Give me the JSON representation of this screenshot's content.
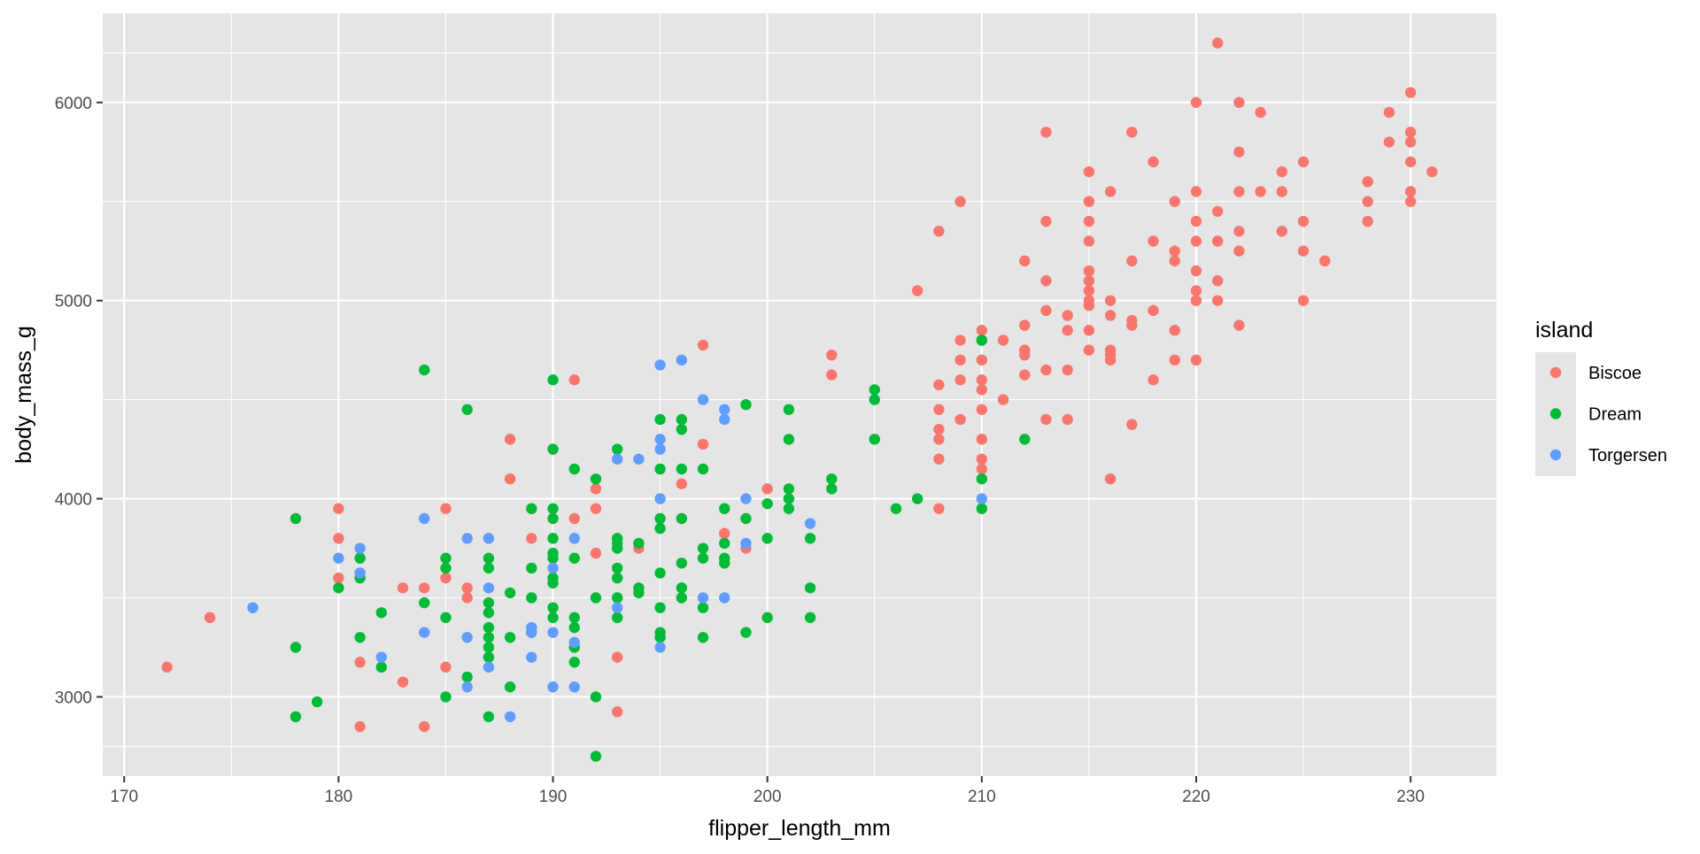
{
  "chart_data": {
    "type": "scatter",
    "xlabel": "flipper_length_mm",
    "ylabel": "body_mass_g",
    "xlim": [
      169,
      234
    ],
    "ylim": [
      2600,
      6450
    ],
    "x_ticks": [
      170,
      180,
      190,
      200,
      210,
      220,
      230
    ],
    "y_ticks": [
      3000,
      4000,
      5000,
      6000
    ],
    "x_tick_labels": [
      "170",
      "180",
      "190",
      "200",
      "210",
      "220",
      "230"
    ],
    "y_tick_labels": [
      "3000",
      "4000",
      "5000",
      "6000"
    ],
    "grid": true,
    "panel_color": "#e5e5e5",
    "grid_color": "#ffffff",
    "legend": {
      "title": "island",
      "position": "right"
    },
    "series": [
      {
        "name": "Biscoe",
        "color": "#f8766d",
        "points": [
          [
            172,
            3150
          ],
          [
            174,
            3400
          ],
          [
            180,
            3950
          ],
          [
            180,
            3800
          ],
          [
            180,
            3600
          ],
          [
            181,
            3175
          ],
          [
            181,
            2850
          ],
          [
            183,
            3550
          ],
          [
            183,
            3075
          ],
          [
            184,
            3550
          ],
          [
            184,
            2850
          ],
          [
            185,
            3950
          ],
          [
            185,
            3600
          ],
          [
            185,
            3150
          ],
          [
            186,
            3550
          ],
          [
            186,
            3500
          ],
          [
            188,
            4300
          ],
          [
            188,
            4100
          ],
          [
            189,
            3800
          ],
          [
            190,
            4250
          ],
          [
            191,
            4600
          ],
          [
            191,
            3900
          ],
          [
            192,
            4050
          ],
          [
            192,
            3950
          ],
          [
            192,
            3725
          ],
          [
            193,
            3200
          ],
          [
            193,
            2925
          ],
          [
            194,
            3750
          ],
          [
            196,
            4075
          ],
          [
            197,
            4775
          ],
          [
            197,
            4275
          ],
          [
            198,
            3825
          ],
          [
            199,
            3750
          ],
          [
            200,
            4050
          ],
          [
            203,
            4725
          ],
          [
            203,
            4625
          ],
          [
            207,
            5050
          ],
          [
            208,
            5350
          ],
          [
            208,
            4575
          ],
          [
            208,
            4450
          ],
          [
            208,
            4350
          ],
          [
            208,
            4300
          ],
          [
            208,
            4200
          ],
          [
            208,
            3950
          ],
          [
            209,
            5500
          ],
          [
            209,
            4800
          ],
          [
            209,
            4700
          ],
          [
            209,
            4600
          ],
          [
            209,
            4400
          ],
          [
            210,
            4850
          ],
          [
            210,
            4800
          ],
          [
            210,
            4700
          ],
          [
            210,
            4600
          ],
          [
            210,
            4550
          ],
          [
            210,
            4450
          ],
          [
            210,
            4300
          ],
          [
            210,
            4200
          ],
          [
            210,
            4150
          ],
          [
            211,
            4800
          ],
          [
            211,
            4500
          ],
          [
            212,
            5200
          ],
          [
            212,
            4875
          ],
          [
            212,
            4750
          ],
          [
            212,
            4725
          ],
          [
            212,
            4625
          ],
          [
            213,
            5850
          ],
          [
            213,
            5400
          ],
          [
            213,
            5100
          ],
          [
            213,
            4950
          ],
          [
            213,
            4650
          ],
          [
            213,
            4400
          ],
          [
            214,
            4925
          ],
          [
            214,
            4850
          ],
          [
            214,
            4650
          ],
          [
            214,
            4400
          ],
          [
            215,
            5650
          ],
          [
            215,
            5500
          ],
          [
            215,
            5400
          ],
          [
            215,
            5300
          ],
          [
            215,
            5150
          ],
          [
            215,
            5100
          ],
          [
            215,
            5050
          ],
          [
            215,
            5000
          ],
          [
            215,
            4975
          ],
          [
            215,
            4850
          ],
          [
            215,
            4750
          ],
          [
            216,
            5550
          ],
          [
            216,
            5000
          ],
          [
            216,
            4925
          ],
          [
            216,
            4750
          ],
          [
            216,
            4725
          ],
          [
            216,
            4700
          ],
          [
            216,
            4100
          ],
          [
            217,
            5850
          ],
          [
            217,
            5200
          ],
          [
            217,
            4900
          ],
          [
            217,
            4875
          ],
          [
            217,
            4375
          ],
          [
            218,
            5700
          ],
          [
            218,
            5300
          ],
          [
            218,
            4950
          ],
          [
            218,
            4600
          ],
          [
            219,
            5500
          ],
          [
            219,
            5250
          ],
          [
            219,
            5200
          ],
          [
            219,
            4850
          ],
          [
            219,
            4700
          ],
          [
            220,
            6000
          ],
          [
            220,
            5550
          ],
          [
            220,
            5400
          ],
          [
            220,
            5300
          ],
          [
            220,
            5150
          ],
          [
            220,
            5050
          ],
          [
            220,
            5000
          ],
          [
            220,
            4700
          ],
          [
            221,
            6300
          ],
          [
            221,
            5450
          ],
          [
            221,
            5300
          ],
          [
            221,
            5100
          ],
          [
            221,
            5000
          ],
          [
            222,
            6000
          ],
          [
            222,
            5750
          ],
          [
            222,
            5550
          ],
          [
            222,
            5350
          ],
          [
            222,
            5250
          ],
          [
            222,
            4875
          ],
          [
            223,
            5950
          ],
          [
            223,
            5550
          ],
          [
            224,
            5650
          ],
          [
            224,
            5550
          ],
          [
            224,
            5350
          ],
          [
            225,
            5700
          ],
          [
            225,
            5400
          ],
          [
            225,
            5250
          ],
          [
            225,
            5000
          ],
          [
            226,
            5200
          ],
          [
            228,
            5600
          ],
          [
            228,
            5500
          ],
          [
            228,
            5400
          ],
          [
            229,
            5950
          ],
          [
            229,
            5800
          ],
          [
            230,
            6050
          ],
          [
            230,
            5850
          ],
          [
            230,
            5800
          ],
          [
            230,
            5700
          ],
          [
            230,
            5550
          ],
          [
            230,
            5500
          ],
          [
            231,
            5650
          ]
        ]
      },
      {
        "name": "Dream",
        "color": "#00ba38",
        "points": [
          [
            178,
            3900
          ],
          [
            178,
            3250
          ],
          [
            178,
            2900
          ],
          [
            179,
            2975
          ],
          [
            180,
            3550
          ],
          [
            181,
            3700
          ],
          [
            181,
            3600
          ],
          [
            181,
            3300
          ],
          [
            182,
            3425
          ],
          [
            182,
            3150
          ],
          [
            184,
            4650
          ],
          [
            184,
            3475
          ],
          [
            185,
            3700
          ],
          [
            185,
            3650
          ],
          [
            185,
            3400
          ],
          [
            185,
            3000
          ],
          [
            186,
            4450
          ],
          [
            186,
            3100
          ],
          [
            187,
            3700
          ],
          [
            187,
            3650
          ],
          [
            187,
            3475
          ],
          [
            187,
            3425
          ],
          [
            187,
            3350
          ],
          [
            187,
            3300
          ],
          [
            187,
            3250
          ],
          [
            187,
            3200
          ],
          [
            187,
            2900
          ],
          [
            188,
            3525
          ],
          [
            188,
            3300
          ],
          [
            188,
            3050
          ],
          [
            189,
            3950
          ],
          [
            189,
            3650
          ],
          [
            189,
            3500
          ],
          [
            189,
            3325
          ],
          [
            190,
            4600
          ],
          [
            190,
            4250
          ],
          [
            190,
            3950
          ],
          [
            190,
            3900
          ],
          [
            190,
            3800
          ],
          [
            190,
            3725
          ],
          [
            190,
            3700
          ],
          [
            190,
            3600
          ],
          [
            190,
            3575
          ],
          [
            190,
            3450
          ],
          [
            190,
            3400
          ],
          [
            191,
            4150
          ],
          [
            191,
            3700
          ],
          [
            191,
            3400
          ],
          [
            191,
            3350
          ],
          [
            191,
            3250
          ],
          [
            191,
            3175
          ],
          [
            192,
            4100
          ],
          [
            192,
            3500
          ],
          [
            192,
            3000
          ],
          [
            192,
            2700
          ],
          [
            193,
            4250
          ],
          [
            193,
            3800
          ],
          [
            193,
            3775
          ],
          [
            193,
            3750
          ],
          [
            193,
            3650
          ],
          [
            193,
            3600
          ],
          [
            193,
            3500
          ],
          [
            193,
            3400
          ],
          [
            194,
            3775
          ],
          [
            194,
            3550
          ],
          [
            194,
            3525
          ],
          [
            195,
            4400
          ],
          [
            195,
            4150
          ],
          [
            195,
            3900
          ],
          [
            195,
            3850
          ],
          [
            195,
            3625
          ],
          [
            195,
            3450
          ],
          [
            195,
            3325
          ],
          [
            195,
            3300
          ],
          [
            196,
            4400
          ],
          [
            196,
            4350
          ],
          [
            196,
            4150
          ],
          [
            196,
            3900
          ],
          [
            196,
            3675
          ],
          [
            196,
            3550
          ],
          [
            196,
            3500
          ],
          [
            197,
            4150
          ],
          [
            197,
            3750
          ],
          [
            197,
            3700
          ],
          [
            197,
            3450
          ],
          [
            197,
            3300
          ],
          [
            198,
            3950
          ],
          [
            198,
            3775
          ],
          [
            198,
            3700
          ],
          [
            198,
            3675
          ],
          [
            199,
            4475
          ],
          [
            199,
            3900
          ],
          [
            199,
            3325
          ],
          [
            200,
            3975
          ],
          [
            200,
            3800
          ],
          [
            200,
            3400
          ],
          [
            201,
            4450
          ],
          [
            201,
            4300
          ],
          [
            201,
            4050
          ],
          [
            201,
            4000
          ],
          [
            201,
            3950
          ],
          [
            202,
            3800
          ],
          [
            202,
            3550
          ],
          [
            202,
            3400
          ],
          [
            203,
            4100
          ],
          [
            203,
            4050
          ],
          [
            205,
            4550
          ],
          [
            205,
            4500
          ],
          [
            205,
            4300
          ],
          [
            206,
            3950
          ],
          [
            207,
            4000
          ],
          [
            210,
            4800
          ],
          [
            210,
            4100
          ],
          [
            210,
            3950
          ],
          [
            212,
            4300
          ]
        ]
      },
      {
        "name": "Torgersen",
        "color": "#619cff",
        "points": [
          [
            176,
            3450
          ],
          [
            180,
            3700
          ],
          [
            181,
            3750
          ],
          [
            181,
            3625
          ],
          [
            182,
            3200
          ],
          [
            184,
            3900
          ],
          [
            184,
            3325
          ],
          [
            186,
            3800
          ],
          [
            186,
            3300
          ],
          [
            186,
            3050
          ],
          [
            187,
            3800
          ],
          [
            187,
            3550
          ],
          [
            187,
            3150
          ],
          [
            188,
            2900
          ],
          [
            189,
            3350
          ],
          [
            189,
            3325
          ],
          [
            189,
            3200
          ],
          [
            190,
            3650
          ],
          [
            190,
            3325
          ],
          [
            190,
            3050
          ],
          [
            191,
            3800
          ],
          [
            191,
            3275
          ],
          [
            191,
            3050
          ],
          [
            193,
            4200
          ],
          [
            193,
            3450
          ],
          [
            194,
            4200
          ],
          [
            195,
            4675
          ],
          [
            195,
            4300
          ],
          [
            195,
            4250
          ],
          [
            195,
            4000
          ],
          [
            195,
            3250
          ],
          [
            196,
            4700
          ],
          [
            197,
            4500
          ],
          [
            197,
            3500
          ],
          [
            198,
            4450
          ],
          [
            198,
            4400
          ],
          [
            198,
            3500
          ],
          [
            199,
            4000
          ],
          [
            199,
            3775
          ],
          [
            202,
            3875
          ],
          [
            210,
            4000
          ]
        ]
      }
    ]
  }
}
